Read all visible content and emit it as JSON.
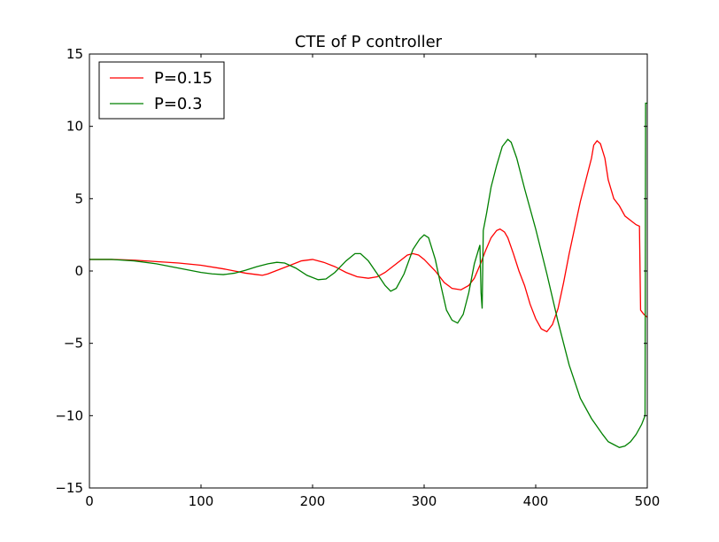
{
  "chart_data": {
    "type": "line",
    "title": "CTE of P controller",
    "xlabel": "",
    "ylabel": "",
    "xlim": [
      0,
      500
    ],
    "ylim": [
      -15,
      15
    ],
    "xticks": [
      0,
      100,
      200,
      300,
      400,
      500
    ],
    "yticks": [
      -15,
      -10,
      -5,
      0,
      5,
      10,
      15
    ],
    "xtick_labels": [
      "0",
      "100",
      "200",
      "300",
      "400",
      "500"
    ],
    "ytick_labels": [
      "−15",
      "−10",
      "−5",
      "0",
      "5",
      "10",
      "15"
    ],
    "grid": false,
    "legend_position": "top-left",
    "series": [
      {
        "name": "P=0.15",
        "color": "#ff0000",
        "points": [
          [
            0,
            0.8
          ],
          [
            20,
            0.8
          ],
          [
            40,
            0.75
          ],
          [
            60,
            0.65
          ],
          [
            80,
            0.55
          ],
          [
            100,
            0.4
          ],
          [
            120,
            0.15
          ],
          [
            130,
            0.0
          ],
          [
            140,
            -0.15
          ],
          [
            150,
            -0.25
          ],
          [
            155,
            -0.3
          ],
          [
            160,
            -0.2
          ],
          [
            170,
            0.1
          ],
          [
            180,
            0.4
          ],
          [
            190,
            0.7
          ],
          [
            200,
            0.8
          ],
          [
            210,
            0.6
          ],
          [
            220,
            0.3
          ],
          [
            230,
            -0.1
          ],
          [
            240,
            -0.4
          ],
          [
            250,
            -0.5
          ],
          [
            258,
            -0.4
          ],
          [
            265,
            -0.1
          ],
          [
            275,
            0.5
          ],
          [
            285,
            1.1
          ],
          [
            290,
            1.2
          ],
          [
            295,
            1.1
          ],
          [
            300,
            0.8
          ],
          [
            310,
            0.0
          ],
          [
            318,
            -0.8
          ],
          [
            325,
            -1.2
          ],
          [
            333,
            -1.3
          ],
          [
            340,
            -1.0
          ],
          [
            345,
            -0.5
          ],
          [
            350,
            0.4
          ],
          [
            355,
            1.4
          ],
          [
            360,
            2.3
          ],
          [
            365,
            2.8
          ],
          [
            368,
            2.9
          ],
          [
            372,
            2.7
          ],
          [
            375,
            2.3
          ],
          [
            380,
            1.2
          ],
          [
            385,
            0.0
          ],
          [
            390,
            -1.0
          ],
          [
            395,
            -2.3
          ],
          [
            400,
            -3.3
          ],
          [
            405,
            -4.0
          ],
          [
            410,
            -4.2
          ],
          [
            415,
            -3.7
          ],
          [
            420,
            -2.6
          ],
          [
            425,
            -0.8
          ],
          [
            430,
            1.2
          ],
          [
            435,
            3.0
          ],
          [
            440,
            4.8
          ],
          [
            445,
            6.3
          ],
          [
            450,
            7.8
          ],
          [
            452,
            8.7
          ],
          [
            455,
            9.0
          ],
          [
            458,
            8.8
          ],
          [
            462,
            7.8
          ],
          [
            465,
            6.3
          ],
          [
            470,
            5.0
          ],
          [
            475,
            4.5
          ],
          [
            480,
            3.8
          ],
          [
            485,
            3.5
          ],
          [
            490,
            3.2
          ],
          [
            493,
            3.1
          ],
          [
            494,
            -2.7
          ],
          [
            497,
            -3.0
          ],
          [
            500,
            -3.2
          ]
        ]
      },
      {
        "name": "P=0.3",
        "color": "#008000",
        "points": [
          [
            0,
            0.8
          ],
          [
            20,
            0.8
          ],
          [
            40,
            0.7
          ],
          [
            60,
            0.5
          ],
          [
            80,
            0.2
          ],
          [
            100,
            -0.1
          ],
          [
            110,
            -0.2
          ],
          [
            120,
            -0.25
          ],
          [
            130,
            -0.15
          ],
          [
            140,
            0.05
          ],
          [
            150,
            0.3
          ],
          [
            160,
            0.5
          ],
          [
            168,
            0.6
          ],
          [
            175,
            0.55
          ],
          [
            185,
            0.2
          ],
          [
            195,
            -0.3
          ],
          [
            205,
            -0.6
          ],
          [
            212,
            -0.55
          ],
          [
            220,
            -0.1
          ],
          [
            230,
            0.7
          ],
          [
            238,
            1.2
          ],
          [
            243,
            1.2
          ],
          [
            250,
            0.7
          ],
          [
            258,
            -0.2
          ],
          [
            265,
            -1.0
          ],
          [
            270,
            -1.4
          ],
          [
            275,
            -1.2
          ],
          [
            282,
            -0.2
          ],
          [
            290,
            1.5
          ],
          [
            296,
            2.2
          ],
          [
            300,
            2.5
          ],
          [
            304,
            2.3
          ],
          [
            310,
            0.8
          ],
          [
            315,
            -1.0
          ],
          [
            320,
            -2.7
          ],
          [
            325,
            -3.4
          ],
          [
            330,
            -3.6
          ],
          [
            335,
            -3.0
          ],
          [
            340,
            -1.5
          ],
          [
            345,
            0.5
          ],
          [
            350,
            1.8
          ],
          [
            351,
            -1.5
          ],
          [
            352,
            -2.6
          ],
          [
            353,
            2.8
          ],
          [
            356,
            4.0
          ],
          [
            360,
            5.8
          ],
          [
            365,
            7.3
          ],
          [
            370,
            8.6
          ],
          [
            375,
            9.1
          ],
          [
            378,
            8.9
          ],
          [
            383,
            7.8
          ],
          [
            390,
            5.7
          ],
          [
            400,
            2.9
          ],
          [
            410,
            -0.2
          ],
          [
            420,
            -3.5
          ],
          [
            430,
            -6.5
          ],
          [
            440,
            -8.8
          ],
          [
            450,
            -10.2
          ],
          [
            460,
            -11.3
          ],
          [
            465,
            -11.8
          ],
          [
            470,
            -12.0
          ],
          [
            475,
            -12.2
          ],
          [
            480,
            -12.1
          ],
          [
            485,
            -11.8
          ],
          [
            490,
            -11.3
          ],
          [
            495,
            -10.6
          ],
          [
            498,
            -10.0
          ],
          [
            498.5,
            11.6
          ],
          [
            500,
            11.6
          ]
        ]
      }
    ]
  }
}
